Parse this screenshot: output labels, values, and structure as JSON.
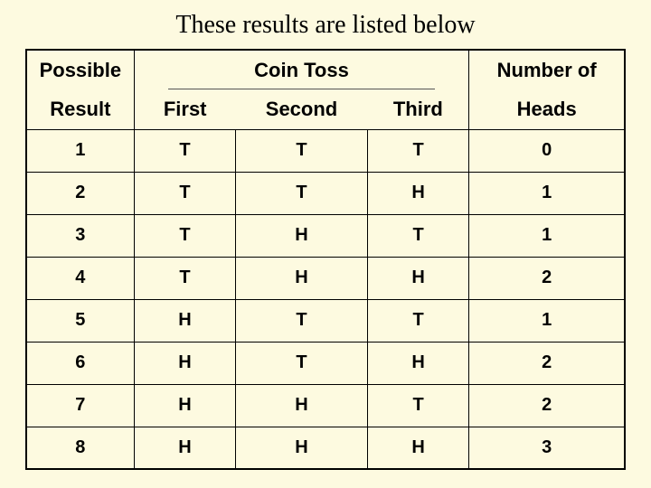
{
  "title": "These results are listed below",
  "header": {
    "top": {
      "possible": "Possible",
      "coin_toss": "Coin Toss",
      "number_of": "Number of"
    },
    "bottom": {
      "result": "Result",
      "first": "First",
      "second": "Second",
      "third": "Third",
      "heads": "Heads"
    }
  },
  "rows": [
    {
      "n": "1",
      "first": "T",
      "second": "T",
      "third": "T",
      "heads": "0"
    },
    {
      "n": "2",
      "first": "T",
      "second": "T",
      "third": "H",
      "heads": "1"
    },
    {
      "n": "3",
      "first": "T",
      "second": "H",
      "third": "T",
      "heads": "1"
    },
    {
      "n": "4",
      "first": "T",
      "second": "H",
      "third": "H",
      "heads": "2"
    },
    {
      "n": "5",
      "first": "H",
      "second": "T",
      "third": "T",
      "heads": "1"
    },
    {
      "n": "6",
      "first": "H",
      "second": "T",
      "third": "H",
      "heads": "2"
    },
    {
      "n": "7",
      "first": "H",
      "second": "H",
      "third": "T",
      "heads": "2"
    },
    {
      "n": "8",
      "first": "H",
      "second": "H",
      "third": "H",
      "heads": "3"
    }
  ],
  "style": {
    "background_color": "#fdfae0",
    "text_color": "#000000",
    "border_color": "#000000",
    "title_fontsize": 28,
    "header_fontsize": 22,
    "cell_fontsize": 20
  }
}
